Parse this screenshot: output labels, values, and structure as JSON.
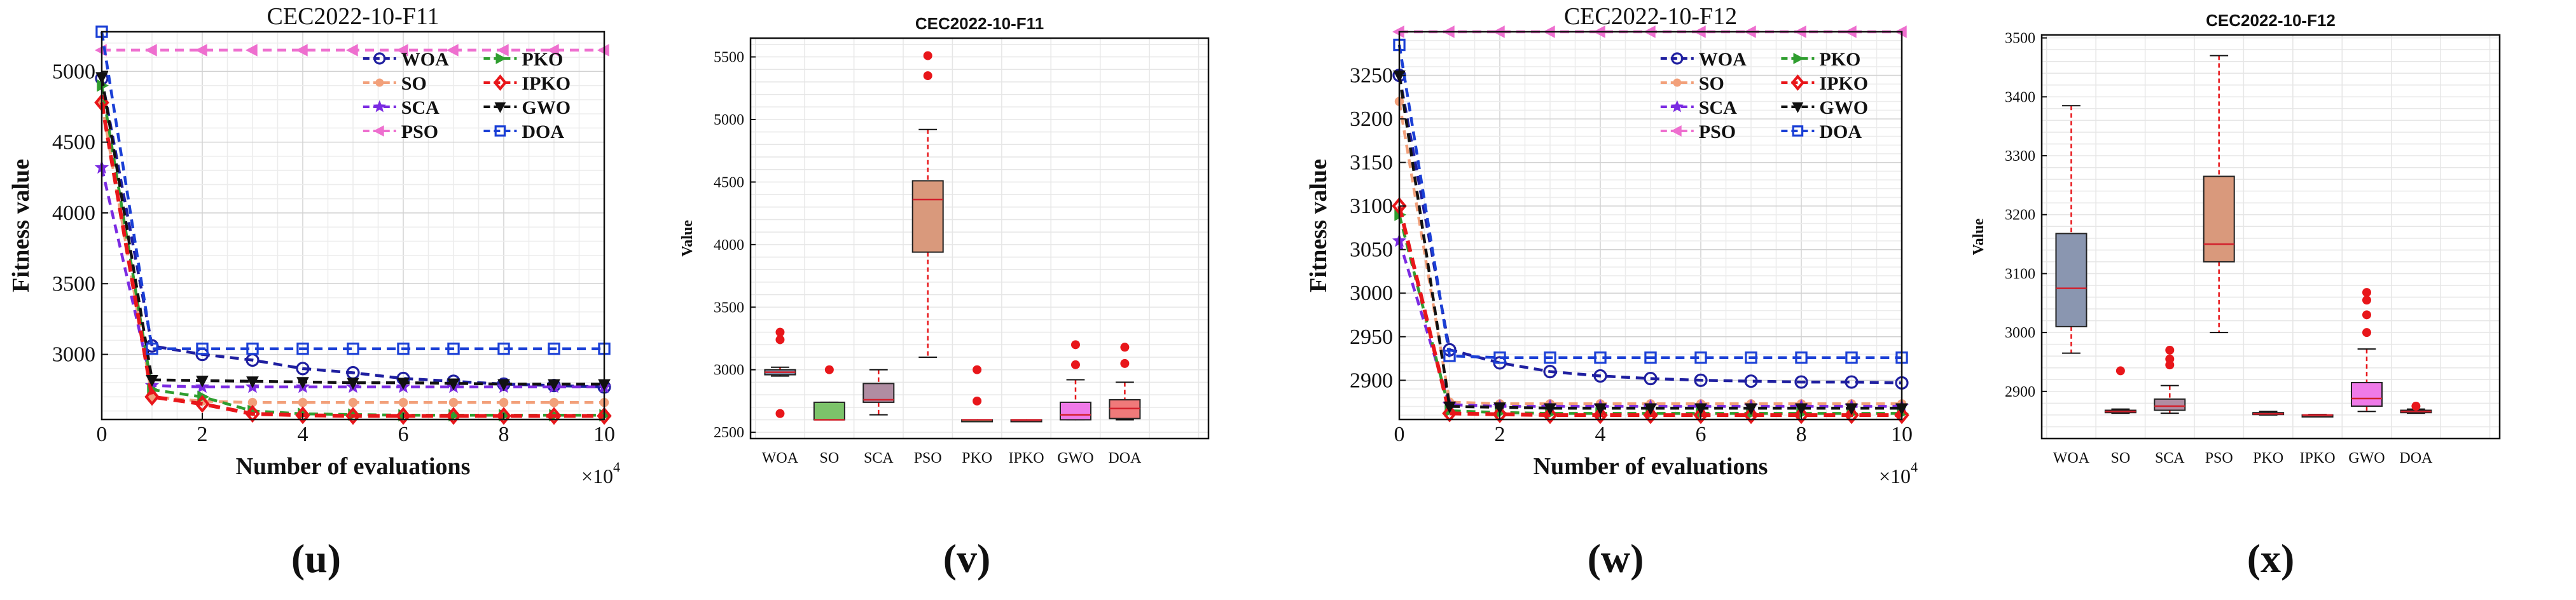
{
  "panel_labels": [
    "(u)",
    "(v)",
    "(w)",
    "(x)"
  ],
  "colors": {
    "WOA": "#1f1fa0",
    "SO": "#f2a07a",
    "SCA": "#7b2be2",
    "PSO": "#ee6fcf",
    "PKO": "#2f9e2f",
    "IPKO": "#e8161a",
    "GWO": "#111111",
    "DOA": "#1a3fd6",
    "outlier": "#e8161a",
    "median": "#d2202c",
    "whisker": "#e8161a"
  },
  "chart_data": [
    {
      "type": "line",
      "title": "CEC2022-10-F11",
      "xlabel": "Number of evaluations",
      "ylabel": "Fitness value",
      "x_exponent": "×10",
      "x_exponent_power": "4",
      "xlim": [
        0,
        10
      ],
      "ylim": [
        2540,
        5280
      ],
      "xticks": [
        "0",
        "2",
        "4",
        "6",
        "8",
        "10"
      ],
      "yticks": [
        "3000",
        "3500",
        "4000",
        "4500",
        "5000"
      ],
      "x": [
        0,
        1,
        2,
        3,
        4,
        5,
        6,
        7,
        8,
        9,
        10
      ],
      "series": [
        {
          "name": "WOA",
          "marker": "circle",
          "values": [
            4950,
            3060,
            3000,
            2960,
            2900,
            2870,
            2830,
            2810,
            2790,
            2780,
            2770
          ]
        },
        {
          "name": "SO",
          "marker": "dot",
          "values": [
            4780,
            2700,
            2670,
            2660,
            2660,
            2660,
            2660,
            2660,
            2660,
            2660,
            2660
          ]
        },
        {
          "name": "SCA",
          "marker": "star",
          "values": [
            4320,
            2780,
            2770,
            2770,
            2770,
            2770,
            2770,
            2770,
            2770,
            2770,
            2770
          ]
        },
        {
          "name": "PSO",
          "marker": "triangle-left",
          "values": [
            5150,
            5150,
            5150,
            5150,
            5150,
            5150,
            5150,
            5150,
            5150,
            5150,
            5150
          ]
        },
        {
          "name": "PKO",
          "marker": "triangle-right",
          "values": [
            4900,
            2750,
            2700,
            2600,
            2580,
            2575,
            2570,
            2570,
            2570,
            2570,
            2570
          ]
        },
        {
          "name": "IPKO",
          "marker": "diamond",
          "values": [
            4780,
            2700,
            2650,
            2580,
            2570,
            2565,
            2565,
            2565,
            2565,
            2565,
            2565
          ]
        },
        {
          "name": "GWO",
          "marker": "triangle-down",
          "values": [
            4960,
            2820,
            2815,
            2810,
            2805,
            2800,
            2800,
            2795,
            2790,
            2790,
            2790
          ]
        },
        {
          "name": "DOA",
          "marker": "square",
          "values": [
            5280,
            3040,
            3040,
            3040,
            3040,
            3040,
            3040,
            3040,
            3040,
            3040,
            3040
          ]
        }
      ],
      "legend": [
        [
          "WOA",
          "PKO"
        ],
        [
          "SO",
          "IPKO"
        ],
        [
          "SCA",
          "GWO"
        ],
        [
          "PSO",
          "DOA"
        ]
      ]
    },
    {
      "type": "box",
      "title": "CEC2022-10-F11",
      "ylabel": "Value",
      "ylim": [
        2450,
        5650
      ],
      "yticks": [
        "2500",
        "3000",
        "3500",
        "4000",
        "4500",
        "5000",
        "5500"
      ],
      "categories": [
        "WOA",
        "SO",
        "SCA",
        "PSO",
        "PKO",
        "IPKO",
        "GWO",
        "DOA"
      ],
      "boxes": [
        {
          "name": "WOA",
          "fill": "#8a96b0",
          "whislo": 2950,
          "q1": 2960,
          "med": 2980,
          "q3": 3000,
          "whishi": 3020,
          "fliers": [
            3300,
            3240,
            2650
          ]
        },
        {
          "name": "SO",
          "fill": "#7cc36a",
          "whislo": 2600,
          "q1": 2600,
          "med": 2600,
          "q3": 2740,
          "whishi": 2740,
          "fliers": [
            3000
          ]
        },
        {
          "name": "SCA",
          "fill": "#b08da2",
          "whislo": 2640,
          "q1": 2740,
          "med": 2760,
          "q3": 2890,
          "whishi": 3000,
          "fliers": []
        },
        {
          "name": "PSO",
          "fill": "#d9997c",
          "whislo": 3100,
          "q1": 3940,
          "med": 4360,
          "q3": 4510,
          "whishi": 4920,
          "fliers": [
            5350,
            5510
          ]
        },
        {
          "name": "PKO",
          "fill": "#6a9f60",
          "whislo": 2600,
          "q1": 2600,
          "med": 2600,
          "q3": 2600,
          "whishi": 2600,
          "fliers": [
            3000,
            2750
          ]
        },
        {
          "name": "IPKO",
          "fill": "#cc4a4a",
          "whislo": 2600,
          "q1": 2600,
          "med": 2600,
          "q3": 2600,
          "whishi": 2600,
          "fliers": []
        },
        {
          "name": "GWO",
          "fill": "#ef7ae8",
          "whislo": 2600,
          "q1": 2600,
          "med": 2640,
          "q3": 2740,
          "whishi": 2920,
          "fliers": [
            3200,
            3040
          ]
        },
        {
          "name": "DOA",
          "fill": "#f07a7a",
          "whislo": 2600,
          "q1": 2610,
          "med": 2690,
          "q3": 2760,
          "whishi": 2900,
          "fliers": [
            3180,
            3050
          ]
        }
      ]
    },
    {
      "type": "line",
      "title": "CEC2022-10-F12",
      "xlabel": "Number of evaluations",
      "ylabel": "Fitness value",
      "x_exponent": "×10",
      "x_exponent_power": "4",
      "xlim": [
        0,
        10
      ],
      "ylim": [
        2855,
        3300
      ],
      "xticks": [
        "0",
        "2",
        "4",
        "6",
        "8",
        "10"
      ],
      "yticks": [
        "2900",
        "2950",
        "3000",
        "3050",
        "3100",
        "3150",
        "3200",
        "3250"
      ],
      "x": [
        0,
        1,
        2,
        3,
        4,
        5,
        6,
        7,
        8,
        9,
        10
      ],
      "series": [
        {
          "name": "WOA",
          "marker": "circle",
          "values": [
            3250,
            2935,
            2920,
            2910,
            2905,
            2902,
            2900,
            2899,
            2898,
            2898,
            2897
          ]
        },
        {
          "name": "SO",
          "marker": "dot",
          "values": [
            3220,
            2875,
            2873,
            2873,
            2873,
            2873,
            2873,
            2873,
            2873,
            2873,
            2873
          ]
        },
        {
          "name": "SCA",
          "marker": "star",
          "values": [
            3060,
            2872,
            2870,
            2870,
            2870,
            2870,
            2870,
            2870,
            2870,
            2870,
            2870
          ]
        },
        {
          "name": "PSO",
          "marker": "triangle-left",
          "values": [
            3300,
            3300,
            3300,
            3300,
            3300,
            3300,
            3300,
            3300,
            3300,
            3300,
            3300
          ]
        },
        {
          "name": "PKO",
          "marker": "triangle-right",
          "values": [
            3090,
            2865,
            2863,
            2862,
            2862,
            2862,
            2862,
            2862,
            2862,
            2862,
            2862
          ]
        },
        {
          "name": "IPKO",
          "marker": "diamond",
          "values": [
            3100,
            2862,
            2861,
            2860,
            2860,
            2860,
            2860,
            2860,
            2860,
            2860,
            2860
          ]
        },
        {
          "name": "GWO",
          "marker": "triangle-down",
          "values": [
            3250,
            2870,
            2869,
            2868,
            2868,
            2868,
            2868,
            2868,
            2868,
            2868,
            2868
          ]
        },
        {
          "name": "DOA",
          "marker": "square",
          "values": [
            3285,
            2928,
            2926,
            2926,
            2926,
            2926,
            2926,
            2926,
            2926,
            2926,
            2926
          ]
        }
      ],
      "legend": [
        [
          "WOA",
          "PKO"
        ],
        [
          "SO",
          "IPKO"
        ],
        [
          "SCA",
          "GWO"
        ],
        [
          "PSO",
          "DOA"
        ]
      ]
    },
    {
      "type": "box",
      "title": "CEC2022-10-F12",
      "ylabel": "Value",
      "ylim": [
        2820,
        3505
      ],
      "yticks": [
        "2900",
        "3000",
        "3100",
        "3200",
        "3300",
        "3400",
        "3500"
      ],
      "categories": [
        "WOA",
        "SO",
        "SCA",
        "PSO",
        "PKO",
        "IPKO",
        "GWO",
        "DOA"
      ],
      "boxes": [
        {
          "name": "WOA",
          "fill": "#8a96b0",
          "whislo": 2965,
          "q1": 3010,
          "med": 3075,
          "q3": 3168,
          "whishi": 3385,
          "fliers": []
        },
        {
          "name": "SO",
          "fill": "#7cc36a",
          "whislo": 2863,
          "q1": 2864,
          "med": 2866,
          "q3": 2868,
          "whishi": 2870,
          "fliers": [
            2935
          ]
        },
        {
          "name": "SCA",
          "fill": "#b08da2",
          "whislo": 2863,
          "q1": 2868,
          "med": 2875,
          "q3": 2887,
          "whishi": 2910,
          "fliers": [
            2970,
            2955,
            2945
          ]
        },
        {
          "name": "PSO",
          "fill": "#d9997c",
          "whislo": 3000,
          "q1": 3120,
          "med": 3150,
          "q3": 3265,
          "whishi": 3470,
          "fliers": []
        },
        {
          "name": "PKO",
          "fill": "#6a9f60",
          "whislo": 2860,
          "q1": 2861,
          "med": 2862,
          "q3": 2864,
          "whishi": 2866,
          "fliers": []
        },
        {
          "name": "IPKO",
          "fill": "#cc4a4a",
          "whislo": 2859,
          "q1": 2859,
          "med": 2860,
          "q3": 2860,
          "whishi": 2861,
          "fliers": []
        },
        {
          "name": "GWO",
          "fill": "#ef7ae8",
          "whislo": 2866,
          "q1": 2875,
          "med": 2888,
          "q3": 2915,
          "whishi": 2972,
          "fliers": [
            3068,
            3055,
            3030,
            3000
          ]
        },
        {
          "name": "DOA",
          "fill": "#f07a7a",
          "whislo": 2863,
          "q1": 2864,
          "med": 2866,
          "q3": 2868,
          "whishi": 2870,
          "fliers": [
            2875
          ]
        }
      ]
    }
  ]
}
